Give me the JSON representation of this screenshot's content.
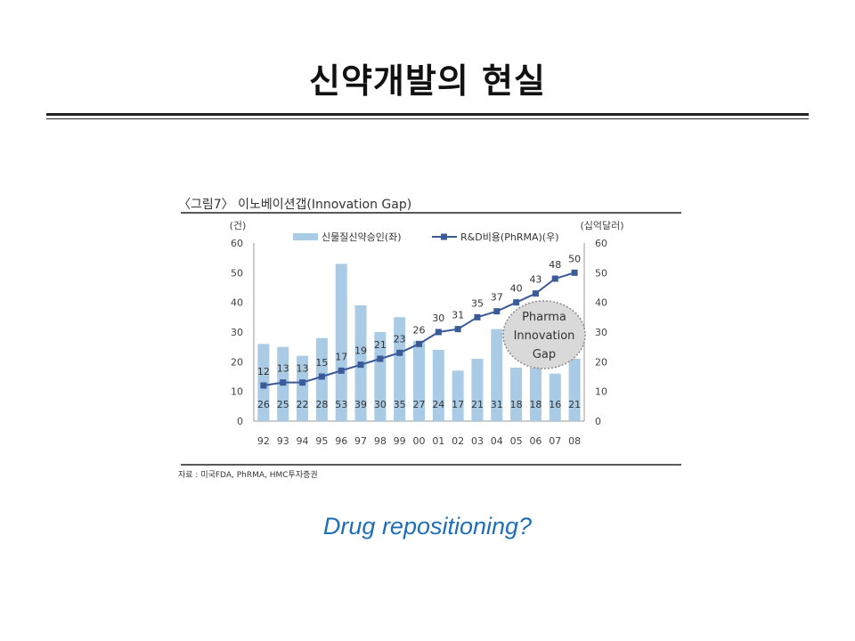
{
  "slide": {
    "title": "신약개발의 현실",
    "question": "Drug repositioning?"
  },
  "figure": {
    "caption": "〈그림7〉 이노베이션갭(Innovation Gap)",
    "source": "자료 : 미국FDA, PhRMA, HMC투자증권"
  },
  "chart_data": {
    "type": "bar",
    "categories": [
      "92",
      "93",
      "94",
      "95",
      "96",
      "97",
      "98",
      "99",
      "00",
      "01",
      "02",
      "03",
      "04",
      "05",
      "06",
      "07",
      "08"
    ],
    "left_axis_unit": "(건)",
    "right_axis_unit": "(십억달러)",
    "ylim": [
      0,
      60
    ],
    "yticks": [
      0,
      10,
      20,
      30,
      40,
      50,
      60
    ],
    "series": [
      {
        "name": "신물질신약승인(좌)",
        "type": "bar",
        "axis": "left",
        "color": "#a9cbe6",
        "values": [
          26,
          25,
          22,
          28,
          53,
          39,
          30,
          35,
          27,
          24,
          17,
          21,
          31,
          18,
          18,
          16,
          21
        ]
      },
      {
        "name": "R&D비용(PhRMA)(우)",
        "type": "line",
        "axis": "right",
        "color": "#3a5a98",
        "values": [
          12,
          13,
          13,
          15,
          17,
          19,
          21,
          23,
          26,
          30,
          31,
          35,
          37,
          40,
          43,
          48,
          50
        ]
      }
    ],
    "annotation": {
      "lines": [
        "Pharma",
        "Innovation",
        "Gap"
      ]
    },
    "grid": false,
    "legend_position": "top"
  }
}
